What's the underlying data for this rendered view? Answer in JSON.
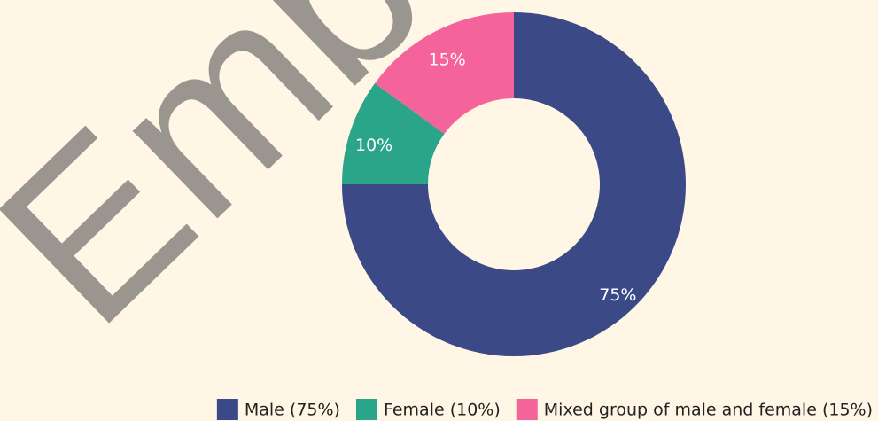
{
  "chart_data": {
    "type": "pie",
    "donut": true,
    "watermark": "Emba",
    "categories": [
      "Male (75%)",
      "Female (10%)",
      "Mixed group of male and female (15%)"
    ],
    "values": [
      75,
      10,
      15
    ],
    "value_labels": [
      "75%",
      "10%",
      "15%"
    ],
    "colors": [
      "#3b4a87",
      "#2aa58a",
      "#f4639a"
    ],
    "legend": "bottom"
  }
}
